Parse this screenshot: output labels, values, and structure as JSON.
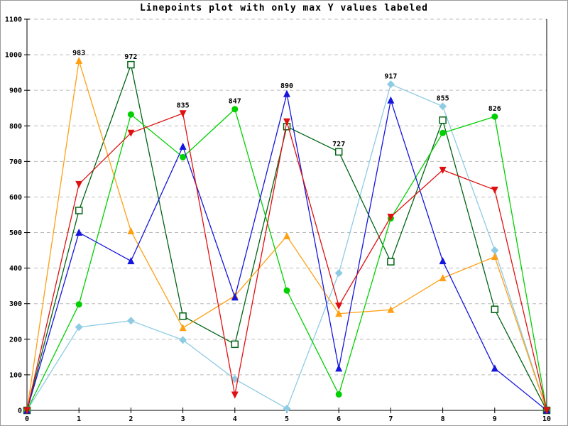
{
  "chart_data": {
    "type": "line",
    "title": "Linepoints plot with only max Y values labeled",
    "xlabel": "",
    "ylabel": "",
    "xlim": [
      0,
      10
    ],
    "ylim": [
      0,
      1100
    ],
    "xticks": [
      0,
      1,
      2,
      3,
      4,
      5,
      6,
      7,
      8,
      9,
      10
    ],
    "yticks": [
      0,
      100,
      200,
      300,
      400,
      500,
      600,
      700,
      800,
      900,
      1000,
      1100
    ],
    "grid": "horizontal-dashed",
    "legend": "none",
    "x": [
      0,
      1,
      2,
      3,
      4,
      5,
      6,
      7,
      8,
      9,
      10
    ],
    "series": [
      {
        "name": "light-blue",
        "color": "#8fcbe4",
        "marker": "diamond-filled",
        "values": [
          0,
          234,
          252,
          198,
          88,
          5,
          386,
          917,
          855,
          450,
          0
        ]
      },
      {
        "name": "dark-green",
        "color": "#006414",
        "marker": "square-open",
        "values": [
          0,
          562,
          972,
          265,
          186,
          798,
          727,
          418,
          816,
          284,
          0
        ]
      },
      {
        "name": "orange",
        "color": "#ffa014",
        "marker": "triangle-up-filled",
        "values": [
          0,
          983,
          504,
          232,
          322,
          490,
          272,
          283,
          372,
          432,
          0
        ]
      },
      {
        "name": "green",
        "color": "#00d000",
        "marker": "circle-filled",
        "values": [
          0,
          298,
          832,
          712,
          847,
          337,
          45,
          540,
          780,
          826,
          0
        ]
      },
      {
        "name": "blue",
        "color": "#1515dd",
        "marker": "triangle-up-filled",
        "values": [
          0,
          500,
          420,
          742,
          318,
          890,
          118,
          872,
          420,
          118,
          0
        ]
      },
      {
        "name": "red",
        "color": "#e01010",
        "marker": "triangle-down-filled",
        "values": [
          0,
          636,
          780,
          835,
          44,
          812,
          294,
          544,
          676,
          620,
          0
        ]
      }
    ],
    "point_labels": [
      {
        "x": 1,
        "value": 983,
        "series": "orange"
      },
      {
        "x": 2,
        "value": 972,
        "series": "dark-green"
      },
      {
        "x": 3,
        "value": 835,
        "series": "red"
      },
      {
        "x": 4,
        "value": 847,
        "series": "green"
      },
      {
        "x": 5,
        "value": 890,
        "series": "blue"
      },
      {
        "x": 6,
        "value": 727,
        "series": "dark-green"
      },
      {
        "x": 7,
        "value": 917,
        "series": "light-blue"
      },
      {
        "x": 8,
        "value": 855,
        "series": "light-blue"
      },
      {
        "x": 9,
        "value": 826,
        "series": "green"
      }
    ],
    "colors": {
      "grid": "#bcbcbc",
      "axis": "#000000",
      "background": "#ffffff",
      "tick_text": "#000000",
      "label_text": "#000000"
    }
  }
}
